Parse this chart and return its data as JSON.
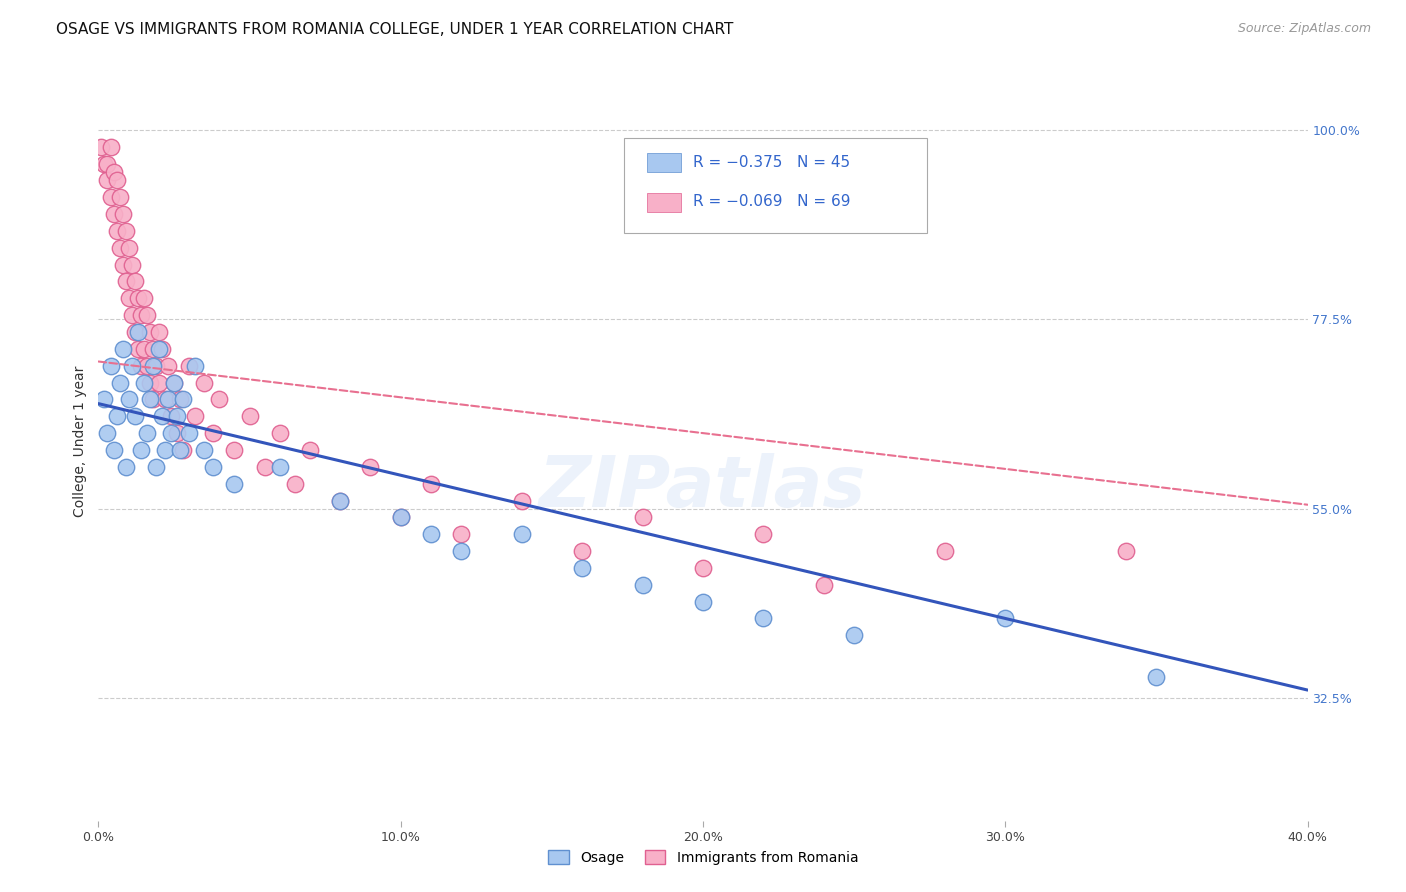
{
  "title": "OSAGE VS IMMIGRANTS FROM ROMANIA COLLEGE, UNDER 1 YEAR CORRELATION CHART",
  "source": "Source: ZipAtlas.com",
  "ylabel": "College, Under 1 year",
  "xlim": [
    0.0,
    0.4
  ],
  "ylim": [
    0.18,
    1.08
  ],
  "xticks": [
    0.0,
    0.1,
    0.2,
    0.3,
    0.4
  ],
  "xtick_labels": [
    "0.0%",
    "10.0%",
    "20.0%",
    "30.0%",
    "40.0%"
  ],
  "yticks_right": [
    0.325,
    0.55,
    0.775,
    1.0
  ],
  "ytick_labels_right": [
    "32.5%",
    "55.0%",
    "77.5%",
    "100.0%"
  ],
  "legend_entries": [
    {
      "label": "R = −0.375   N = 45"
    },
    {
      "label": "R = −0.069   N = 69"
    }
  ],
  "legend_text_color": "#3366cc",
  "watermark": "ZIPatlas",
  "background_color": "#ffffff",
  "grid_color": "#cccccc",
  "osage_x": [
    0.002,
    0.003,
    0.004,
    0.005,
    0.006,
    0.007,
    0.008,
    0.009,
    0.01,
    0.011,
    0.012,
    0.013,
    0.014,
    0.015,
    0.016,
    0.017,
    0.018,
    0.019,
    0.02,
    0.021,
    0.022,
    0.023,
    0.024,
    0.025,
    0.026,
    0.027,
    0.028,
    0.03,
    0.032,
    0.035,
    0.038,
    0.045,
    0.06,
    0.08,
    0.1,
    0.11,
    0.12,
    0.14,
    0.16,
    0.18,
    0.2,
    0.22,
    0.25,
    0.3,
    0.35
  ],
  "osage_y": [
    0.68,
    0.64,
    0.72,
    0.62,
    0.66,
    0.7,
    0.74,
    0.6,
    0.68,
    0.72,
    0.66,
    0.76,
    0.62,
    0.7,
    0.64,
    0.68,
    0.72,
    0.6,
    0.74,
    0.66,
    0.62,
    0.68,
    0.64,
    0.7,
    0.66,
    0.62,
    0.68,
    0.64,
    0.72,
    0.62,
    0.6,
    0.58,
    0.6,
    0.56,
    0.54,
    0.52,
    0.5,
    0.52,
    0.48,
    0.46,
    0.44,
    0.42,
    0.4,
    0.42,
    0.35
  ],
  "romania_x": [
    0.001,
    0.002,
    0.003,
    0.003,
    0.004,
    0.004,
    0.005,
    0.005,
    0.006,
    0.006,
    0.007,
    0.007,
    0.008,
    0.008,
    0.009,
    0.009,
    0.01,
    0.01,
    0.011,
    0.011,
    0.012,
    0.012,
    0.013,
    0.013,
    0.014,
    0.014,
    0.015,
    0.015,
    0.016,
    0.016,
    0.017,
    0.017,
    0.018,
    0.018,
    0.019,
    0.02,
    0.02,
    0.021,
    0.022,
    0.023,
    0.024,
    0.025,
    0.026,
    0.027,
    0.028,
    0.03,
    0.032,
    0.035,
    0.038,
    0.04,
    0.045,
    0.05,
    0.055,
    0.06,
    0.065,
    0.07,
    0.08,
    0.09,
    0.1,
    0.11,
    0.12,
    0.14,
    0.16,
    0.18,
    0.2,
    0.22,
    0.24,
    0.28,
    0.34
  ],
  "romania_y": [
    0.98,
    0.96,
    0.96,
    0.94,
    0.98,
    0.92,
    0.95,
    0.9,
    0.94,
    0.88,
    0.92,
    0.86,
    0.9,
    0.84,
    0.88,
    0.82,
    0.86,
    0.8,
    0.84,
    0.78,
    0.82,
    0.76,
    0.8,
    0.74,
    0.78,
    0.72,
    0.8,
    0.74,
    0.78,
    0.72,
    0.76,
    0.7,
    0.74,
    0.68,
    0.72,
    0.76,
    0.7,
    0.74,
    0.68,
    0.72,
    0.66,
    0.7,
    0.64,
    0.68,
    0.62,
    0.72,
    0.66,
    0.7,
    0.64,
    0.68,
    0.62,
    0.66,
    0.6,
    0.64,
    0.58,
    0.62,
    0.56,
    0.6,
    0.54,
    0.58,
    0.52,
    0.56,
    0.5,
    0.54,
    0.48,
    0.52,
    0.46,
    0.5,
    0.5
  ],
  "osage_color": "#a8c8f0",
  "osage_edge": "#6090d0",
  "romania_color": "#f8b0c8",
  "romania_edge": "#e06090",
  "osage_line_color": "#3355bb",
  "romania_line_color": "#e87090",
  "title_fontsize": 11,
  "axis_label_fontsize": 10,
  "tick_fontsize": 9,
  "legend_fontsize": 11,
  "source_fontsize": 9
}
